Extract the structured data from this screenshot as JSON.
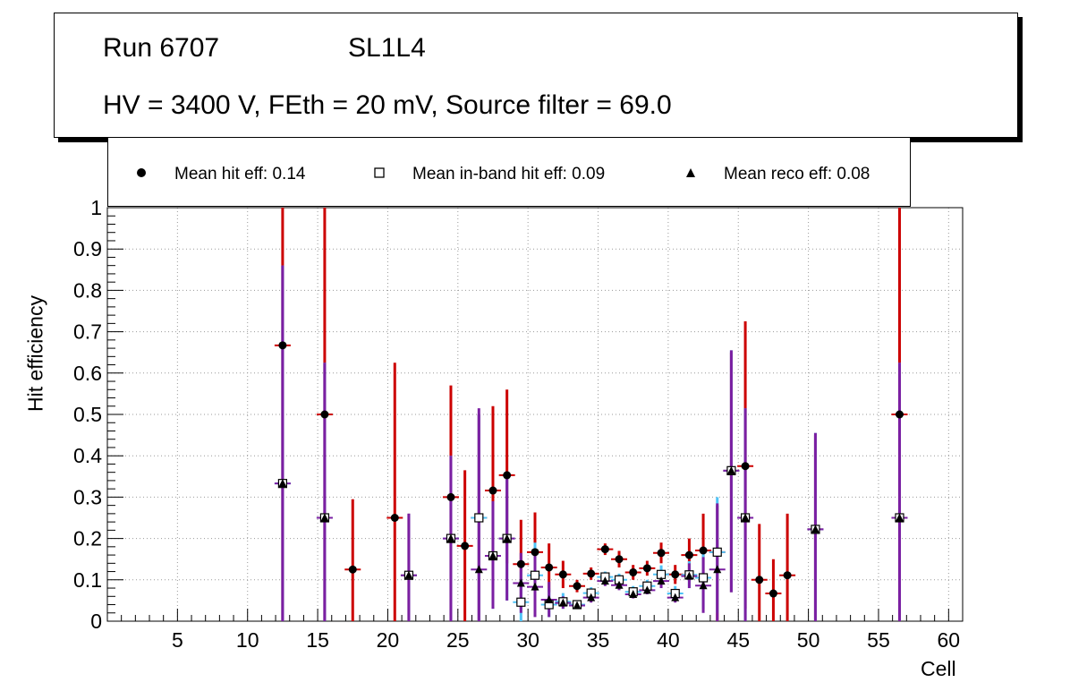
{
  "title_box": {
    "run": "Run 6707",
    "layer": "SL1L4",
    "conditions": "HV = 3400 V, FEth = 20 mV, Source filter = 69.0"
  },
  "legend": {
    "hit": "Mean hit  eff: 0.14",
    "inband": "Mean in-band hit eff: 0.09",
    "reco": "Mean reco eff: 0.08"
  },
  "chart_data": {
    "type": "scatter",
    "xlabel": "Cell",
    "ylabel": "Hit efficiency",
    "xlim": [
      0,
      61
    ],
    "ylim": [
      0,
      1
    ],
    "x_ticks": [
      5,
      10,
      15,
      20,
      25,
      30,
      35,
      40,
      45,
      50,
      55,
      60
    ],
    "y_ticks": [
      0,
      0.1,
      0.2,
      0.3,
      0.4,
      0.5,
      0.6,
      0.7,
      0.8,
      0.9,
      1
    ],
    "y_tick_labels": [
      "0",
      "0.1",
      "0.2",
      "0.3",
      "0.4",
      "0.5",
      "0.6",
      "0.7",
      "0.8",
      "0.9",
      "1"
    ],
    "grid": true,
    "colors": {
      "hit": "#cc0000",
      "inband": "#4fc3f7",
      "reco": "#7b1fa2"
    },
    "series": [
      {
        "name": "Mean hit eff",
        "marker": "circle",
        "points": [
          {
            "x": 12.5,
            "y": 0.667,
            "lo": 0.0,
            "hi": 1.0
          },
          {
            "x": 15.5,
            "y": 0.5,
            "lo": 0.0,
            "hi": 1.0
          },
          {
            "x": 17.5,
            "y": 0.125,
            "lo": 0.0,
            "hi": 0.295
          },
          {
            "x": 20.5,
            "y": 0.25,
            "lo": 0.0,
            "hi": 0.625
          },
          {
            "x": 21.5,
            "y": 0.111,
            "lo": 0.0,
            "hi": 0.26
          },
          {
            "x": 24.5,
            "y": 0.3,
            "lo": 0.0,
            "hi": 0.57
          },
          {
            "x": 25.5,
            "y": 0.182,
            "lo": 0.0,
            "hi": 0.365
          },
          {
            "x": 26.5,
            "y": 0.25,
            "lo": 0.0,
            "hi": 0.5
          },
          {
            "x": 27.5,
            "y": 0.316,
            "lo": 0.11,
            "hi": 0.52
          },
          {
            "x": 28.5,
            "y": 0.353,
            "lo": 0.14,
            "hi": 0.56
          },
          {
            "x": 29.5,
            "y": 0.138,
            "lo": 0.03,
            "hi": 0.245
          },
          {
            "x": 30.5,
            "y": 0.167,
            "lo": 0.07,
            "hi": 0.263
          },
          {
            "x": 31.5,
            "y": 0.13,
            "lo": 0.07,
            "hi": 0.188
          },
          {
            "x": 32.5,
            "y": 0.113,
            "lo": 0.08,
            "hi": 0.146
          },
          {
            "x": 33.5,
            "y": 0.085,
            "lo": 0.07,
            "hi": 0.1
          },
          {
            "x": 34.5,
            "y": 0.115,
            "lo": 0.1,
            "hi": 0.13
          },
          {
            "x": 35.5,
            "y": 0.174,
            "lo": 0.16,
            "hi": 0.188
          },
          {
            "x": 36.5,
            "y": 0.15,
            "lo": 0.13,
            "hi": 0.17
          },
          {
            "x": 37.5,
            "y": 0.118,
            "lo": 0.1,
            "hi": 0.136
          },
          {
            "x": 38.5,
            "y": 0.128,
            "lo": 0.11,
            "hi": 0.146
          },
          {
            "x": 39.5,
            "y": 0.165,
            "lo": 0.14,
            "hi": 0.19
          },
          {
            "x": 40.5,
            "y": 0.113,
            "lo": 0.09,
            "hi": 0.136
          },
          {
            "x": 41.5,
            "y": 0.16,
            "lo": 0.12,
            "hi": 0.2
          },
          {
            "x": 42.5,
            "y": 0.171,
            "lo": 0.08,
            "hi": 0.26
          },
          {
            "x": 43.5,
            "y": 0.167,
            "lo": 0.0,
            "hi": 0.28
          },
          {
            "x": 44.5,
            "y": 0.364,
            "lo": 0.07,
            "hi": 0.65
          },
          {
            "x": 45.5,
            "y": 0.375,
            "lo": 0.03,
            "hi": 0.725
          },
          {
            "x": 46.5,
            "y": 0.1,
            "lo": 0.0,
            "hi": 0.235
          },
          {
            "x": 47.5,
            "y": 0.067,
            "lo": 0.0,
            "hi": 0.15
          },
          {
            "x": 48.5,
            "y": 0.111,
            "lo": 0.0,
            "hi": 0.26
          },
          {
            "x": 50.5,
            "y": 0.222,
            "lo": 0.0,
            "hi": 0.45
          },
          {
            "x": 56.5,
            "y": 0.5,
            "lo": 0.0,
            "hi": 1.0
          }
        ]
      },
      {
        "name": "Mean in-band hit eff",
        "marker": "open-square",
        "points": [
          {
            "x": 12.5,
            "y": 0.333,
            "lo": 0.0,
            "hi": 0.86
          },
          {
            "x": 15.5,
            "y": 0.25,
            "lo": 0.0,
            "hi": 0.625
          },
          {
            "x": 21.5,
            "y": 0.111,
            "lo": 0.0,
            "hi": 0.26
          },
          {
            "x": 24.5,
            "y": 0.2,
            "lo": 0.0,
            "hi": 0.4
          },
          {
            "x": 26.5,
            "y": 0.25,
            "lo": 0.0,
            "hi": 0.5
          },
          {
            "x": 27.5,
            "y": 0.158,
            "lo": 0.03,
            "hi": 0.29
          },
          {
            "x": 28.5,
            "y": 0.2,
            "lo": 0.05,
            "hi": 0.35
          },
          {
            "x": 29.5,
            "y": 0.046,
            "lo": 0.0,
            "hi": 0.12
          },
          {
            "x": 30.5,
            "y": 0.111,
            "lo": 0.03,
            "hi": 0.19
          },
          {
            "x": 31.5,
            "y": 0.04,
            "lo": 0.01,
            "hi": 0.08
          },
          {
            "x": 32.5,
            "y": 0.047,
            "lo": 0.03,
            "hi": 0.068
          },
          {
            "x": 33.5,
            "y": 0.04,
            "lo": 0.03,
            "hi": 0.05
          },
          {
            "x": 34.5,
            "y": 0.068,
            "lo": 0.055,
            "hi": 0.082
          },
          {
            "x": 35.5,
            "y": 0.107,
            "lo": 0.095,
            "hi": 0.12
          },
          {
            "x": 36.5,
            "y": 0.1,
            "lo": 0.085,
            "hi": 0.115
          },
          {
            "x": 37.5,
            "y": 0.071,
            "lo": 0.06,
            "hi": 0.085
          },
          {
            "x": 38.5,
            "y": 0.085,
            "lo": 0.07,
            "hi": 0.1
          },
          {
            "x": 39.5,
            "y": 0.113,
            "lo": 0.09,
            "hi": 0.135
          },
          {
            "x": 40.5,
            "y": 0.067,
            "lo": 0.05,
            "hi": 0.085
          },
          {
            "x": 41.5,
            "y": 0.112,
            "lo": 0.08,
            "hi": 0.145
          },
          {
            "x": 42.5,
            "y": 0.105,
            "lo": 0.03,
            "hi": 0.18
          },
          {
            "x": 43.5,
            "y": 0.167,
            "lo": 0.02,
            "hi": 0.3
          },
          {
            "x": 44.5,
            "y": 0.364,
            "lo": 0.07,
            "hi": 0.655
          },
          {
            "x": 45.5,
            "y": 0.25,
            "lo": 0.0,
            "hi": 0.515
          },
          {
            "x": 50.5,
            "y": 0.222,
            "lo": 0.0,
            "hi": 0.455
          },
          {
            "x": 56.5,
            "y": 0.25,
            "lo": 0.0,
            "hi": 0.625
          }
        ]
      },
      {
        "name": "Mean reco eff",
        "marker": "triangle",
        "points": [
          {
            "x": 12.5,
            "y": 0.333,
            "lo": 0.0,
            "hi": 0.86
          },
          {
            "x": 15.5,
            "y": 0.25,
            "lo": 0.0,
            "hi": 0.625
          },
          {
            "x": 21.5,
            "y": 0.111,
            "lo": 0.0,
            "hi": 0.26
          },
          {
            "x": 24.5,
            "y": 0.2,
            "lo": 0.0,
            "hi": 0.4
          },
          {
            "x": 26.5,
            "y": 0.125,
            "lo": 0.0,
            "hi": 0.515
          },
          {
            "x": 27.5,
            "y": 0.158,
            "lo": 0.03,
            "hi": 0.29
          },
          {
            "x": 28.5,
            "y": 0.2,
            "lo": 0.05,
            "hi": 0.35
          },
          {
            "x": 29.5,
            "y": 0.092,
            "lo": 0.02,
            "hi": 0.165
          },
          {
            "x": 30.5,
            "y": 0.083,
            "lo": 0.01,
            "hi": 0.16
          },
          {
            "x": 31.5,
            "y": 0.052,
            "lo": 0.01,
            "hi": 0.095
          },
          {
            "x": 32.5,
            "y": 0.044,
            "lo": 0.03,
            "hi": 0.06
          },
          {
            "x": 33.5,
            "y": 0.038,
            "lo": 0.03,
            "hi": 0.048
          },
          {
            "x": 34.5,
            "y": 0.057,
            "lo": 0.045,
            "hi": 0.07
          },
          {
            "x": 35.5,
            "y": 0.097,
            "lo": 0.085,
            "hi": 0.11
          },
          {
            "x": 36.5,
            "y": 0.087,
            "lo": 0.075,
            "hi": 0.1
          },
          {
            "x": 37.5,
            "y": 0.065,
            "lo": 0.055,
            "hi": 0.078
          },
          {
            "x": 38.5,
            "y": 0.075,
            "lo": 0.065,
            "hi": 0.088
          },
          {
            "x": 39.5,
            "y": 0.097,
            "lo": 0.08,
            "hi": 0.115
          },
          {
            "x": 40.5,
            "y": 0.057,
            "lo": 0.045,
            "hi": 0.07
          },
          {
            "x": 41.5,
            "y": 0.109,
            "lo": 0.08,
            "hi": 0.14
          },
          {
            "x": 42.5,
            "y": 0.086,
            "lo": 0.02,
            "hi": 0.155
          },
          {
            "x": 43.5,
            "y": 0.125,
            "lo": 0.0,
            "hi": 0.285
          },
          {
            "x": 44.5,
            "y": 0.364,
            "lo": 0.07,
            "hi": 0.655
          },
          {
            "x": 45.5,
            "y": 0.25,
            "lo": 0.0,
            "hi": 0.515
          },
          {
            "x": 50.5,
            "y": 0.222,
            "lo": 0.0,
            "hi": 0.455
          },
          {
            "x": 56.5,
            "y": 0.25,
            "lo": 0.0,
            "hi": 0.625
          }
        ]
      }
    ]
  }
}
